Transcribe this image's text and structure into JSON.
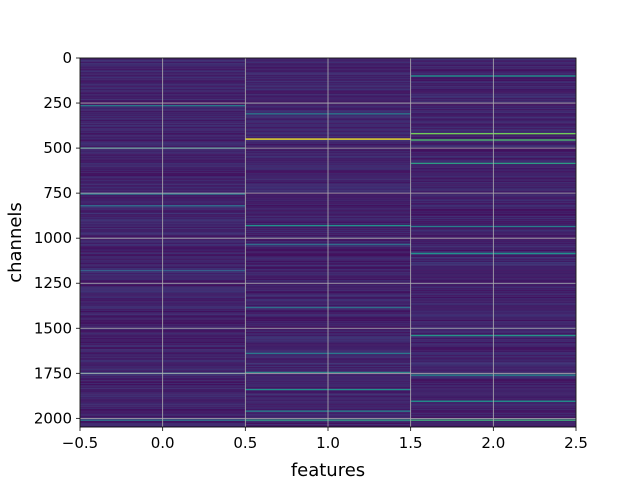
{
  "chart_data": {
    "type": "heatmap",
    "title": "",
    "xlabel": "features",
    "ylabel": "channels",
    "xlim": [
      -0.5,
      2.5
    ],
    "ylim": [
      2048,
      0
    ],
    "y_inverted": true,
    "grid": true,
    "colormap": "viridis",
    "columns": [
      0,
      1,
      2
    ],
    "rows": 2048,
    "xticks": [
      -0.5,
      0.0,
      0.5,
      1.0,
      1.5,
      2.0,
      2.5
    ],
    "xtick_labels": [
      "−0.5",
      "0.0",
      "0.5",
      "1.0",
      "1.5",
      "2.0",
      "2.5"
    ],
    "yticks": [
      0,
      250,
      500,
      750,
      1000,
      1250,
      1500,
      1750,
      2000
    ],
    "ytick_labels": [
      "0",
      "250",
      "500",
      "750",
      "1000",
      "1250",
      "1500",
      "1750",
      "2000"
    ],
    "highlights": [
      {
        "column": 0,
        "channel": 265,
        "intensity": 0.42
      },
      {
        "column": 0,
        "channel": 500,
        "intensity": 0.48
      },
      {
        "column": 0,
        "channel": 755,
        "intensity": 0.38
      },
      {
        "column": 0,
        "channel": 820,
        "intensity": 0.35
      },
      {
        "column": 0,
        "channel": 1180,
        "intensity": 0.3
      },
      {
        "column": 0,
        "channel": 1750,
        "intensity": 0.34
      },
      {
        "column": 0,
        "channel": 2010,
        "intensity": 0.4
      },
      {
        "column": 1,
        "channel": 310,
        "intensity": 0.4
      },
      {
        "column": 1,
        "channel": 450,
        "intensity": 0.98
      },
      {
        "column": 1,
        "channel": 930,
        "intensity": 0.5
      },
      {
        "column": 1,
        "channel": 1035,
        "intensity": 0.35
      },
      {
        "column": 1,
        "channel": 1385,
        "intensity": 0.36
      },
      {
        "column": 1,
        "channel": 1640,
        "intensity": 0.4
      },
      {
        "column": 1,
        "channel": 1745,
        "intensity": 0.45
      },
      {
        "column": 1,
        "channel": 1840,
        "intensity": 0.5
      },
      {
        "column": 1,
        "channel": 1960,
        "intensity": 0.42
      },
      {
        "column": 1,
        "channel": 2010,
        "intensity": 0.55
      },
      {
        "column": 2,
        "channel": 100,
        "intensity": 0.5
      },
      {
        "column": 2,
        "channel": 420,
        "intensity": 0.78
      },
      {
        "column": 2,
        "channel": 455,
        "intensity": 0.68
      },
      {
        "column": 2,
        "channel": 585,
        "intensity": 0.55
      },
      {
        "column": 2,
        "channel": 935,
        "intensity": 0.42
      },
      {
        "column": 2,
        "channel": 1085,
        "intensity": 0.5
      },
      {
        "column": 2,
        "channel": 1540,
        "intensity": 0.52
      },
      {
        "column": 2,
        "channel": 1760,
        "intensity": 0.45
      },
      {
        "column": 2,
        "channel": 1905,
        "intensity": 0.5
      },
      {
        "column": 2,
        "channel": 2010,
        "intensity": 0.62
      }
    ]
  }
}
